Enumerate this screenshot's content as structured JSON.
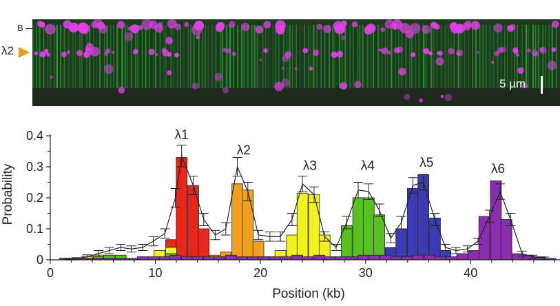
{
  "micrograph": {
    "label_b": "B",
    "label_lane": "λ2",
    "scale_bar": "5 µm",
    "colors": {
      "background": "#1c3a1c",
      "dna": "#39d24a",
      "protein": "#e040e8"
    }
  },
  "chart_data": {
    "type": "bar",
    "title": "",
    "xlabel": "Position (kb)",
    "ylabel": "Probability",
    "xlim": [
      0,
      48.5
    ],
    "ylim": [
      0,
      0.4
    ],
    "x_ticks": [
      0,
      10,
      20,
      30,
      40
    ],
    "y_ticks": [
      0,
      0.1,
      0.2,
      0.3,
      0.4
    ],
    "y_tick_labels": [
      "0",
      "0.1",
      "0.2",
      "0.3",
      "0.4"
    ],
    "bin_width_kb": 1.04,
    "annotations": [
      {
        "text": "λ1",
        "x": 12.5,
        "y": 0.39
      },
      {
        "text": "λ2",
        "x": 18.4,
        "y": 0.34
      },
      {
        "text": "λ3",
        "x": 24.7,
        "y": 0.29
      },
      {
        "text": "λ4",
        "x": 30.2,
        "y": 0.29
      },
      {
        "text": "λ5",
        "x": 35.8,
        "y": 0.3
      },
      {
        "text": "λ6",
        "x": 42.6,
        "y": 0.28
      }
    ],
    "series": [
      {
        "key": "l1",
        "color": "#e8261c",
        "bins": [
          {
            "x": 9.4,
            "y": 0.005
          },
          {
            "x": 10.4,
            "y": 0.01
          },
          {
            "x": 11.5,
            "y": 0.065
          },
          {
            "x": 12.5,
            "y": 0.33
          },
          {
            "x": 13.6,
            "y": 0.24
          },
          {
            "x": 14.6,
            "y": 0.1
          },
          {
            "x": 15.7,
            "y": 0.005
          }
        ]
      },
      {
        "key": "l2",
        "color": "#f0a01c",
        "bins": [
          {
            "x": 15.7,
            "y": 0.015
          },
          {
            "x": 16.7,
            "y": 0.025
          },
          {
            "x": 17.8,
            "y": 0.245
          },
          {
            "x": 18.8,
            "y": 0.225
          },
          {
            "x": 19.8,
            "y": 0.06
          },
          {
            "x": 20.9,
            "y": 0.005
          }
        ]
      },
      {
        "key": "l3",
        "color": "#f2f21c",
        "bins": [
          {
            "x": 3.5,
            "y": 0.01
          },
          {
            "x": 4.6,
            "y": 0.015
          },
          {
            "x": 10.4,
            "y": 0.03
          },
          {
            "x": 11.5,
            "y": 0.04
          },
          {
            "x": 20.9,
            "y": 0.01
          },
          {
            "x": 21.9,
            "y": 0.03
          },
          {
            "x": 23.0,
            "y": 0.08
          },
          {
            "x": 24.0,
            "y": 0.215
          },
          {
            "x": 25.1,
            "y": 0.21
          },
          {
            "x": 26.1,
            "y": 0.08
          },
          {
            "x": 27.2,
            "y": 0.005
          }
        ]
      },
      {
        "key": "l4",
        "color": "#58c020",
        "bins": [
          {
            "x": 4.6,
            "y": 0.01
          },
          {
            "x": 5.6,
            "y": 0.015
          },
          {
            "x": 6.7,
            "y": 0.015
          },
          {
            "x": 11.5,
            "y": 0.02
          },
          {
            "x": 27.2,
            "y": 0.01
          },
          {
            "x": 28.2,
            "y": 0.11
          },
          {
            "x": 29.3,
            "y": 0.2
          },
          {
            "x": 30.3,
            "y": 0.2
          },
          {
            "x": 31.3,
            "y": 0.145
          },
          {
            "x": 32.4,
            "y": 0.005
          }
        ]
      },
      {
        "key": "l5",
        "color": "#3a3ab4",
        "bins": [
          {
            "x": 32.4,
            "y": 0.04
          },
          {
            "x": 33.4,
            "y": 0.1
          },
          {
            "x": 34.5,
            "y": 0.23
          },
          {
            "x": 35.5,
            "y": 0.275
          },
          {
            "x": 36.6,
            "y": 0.135
          },
          {
            "x": 37.6,
            "y": 0.03
          },
          {
            "x": 38.6,
            "y": 0.005
          }
        ]
      },
      {
        "key": "l6",
        "color": "#8a2eb0",
        "bins": [
          {
            "x": 1.4,
            "y": 0.005
          },
          {
            "x": 2.5,
            "y": 0.005
          },
          {
            "x": 3.5,
            "y": 0.005
          },
          {
            "x": 4.6,
            "y": 0.005
          },
          {
            "x": 5.6,
            "y": 0.005
          },
          {
            "x": 6.7,
            "y": 0.005
          },
          {
            "x": 7.7,
            "y": 0.005
          },
          {
            "x": 8.8,
            "y": 0.01
          },
          {
            "x": 9.8,
            "y": 0.01
          },
          {
            "x": 10.9,
            "y": 0.01
          },
          {
            "x": 11.9,
            "y": 0.015
          },
          {
            "x": 13.0,
            "y": 0.01
          },
          {
            "x": 14.0,
            "y": 0.01
          },
          {
            "x": 15.1,
            "y": 0.01
          },
          {
            "x": 16.1,
            "y": 0.01
          },
          {
            "x": 17.2,
            "y": 0.015
          },
          {
            "x": 18.2,
            "y": 0.01
          },
          {
            "x": 19.3,
            "y": 0.01
          },
          {
            "x": 20.3,
            "y": 0.01
          },
          {
            "x": 21.4,
            "y": 0.01
          },
          {
            "x": 22.4,
            "y": 0.01
          },
          {
            "x": 23.5,
            "y": 0.015
          },
          {
            "x": 24.5,
            "y": 0.01
          },
          {
            "x": 25.6,
            "y": 0.015
          },
          {
            "x": 26.6,
            "y": 0.01
          },
          {
            "x": 27.7,
            "y": 0.01
          },
          {
            "x": 28.7,
            "y": 0.01
          },
          {
            "x": 29.8,
            "y": 0.015
          },
          {
            "x": 30.8,
            "y": 0.015
          },
          {
            "x": 31.9,
            "y": 0.015
          },
          {
            "x": 32.9,
            "y": 0.01
          },
          {
            "x": 34.0,
            "y": 0.01
          },
          {
            "x": 35.0,
            "y": 0.015
          },
          {
            "x": 36.1,
            "y": 0.015
          },
          {
            "x": 37.1,
            "y": 0.01
          },
          {
            "x": 38.2,
            "y": 0.01
          },
          {
            "x": 39.2,
            "y": 0.02
          },
          {
            "x": 40.3,
            "y": 0.03
          },
          {
            "x": 41.3,
            "y": 0.14
          },
          {
            "x": 42.4,
            "y": 0.255
          },
          {
            "x": 43.4,
            "y": 0.13
          },
          {
            "x": 44.5,
            "y": 0.02
          },
          {
            "x": 45.5,
            "y": 0.015
          },
          {
            "x": 46.6,
            "y": 0.01
          },
          {
            "x": 47.6,
            "y": 0.005
          }
        ]
      }
    ],
    "overall_line": {
      "color": "#222222",
      "points": [
        {
          "x": 1.4,
          "y": 0.002,
          "err": 0.003
        },
        {
          "x": 2.5,
          "y": 0.003,
          "err": 0.004
        },
        {
          "x": 3.5,
          "y": 0.01,
          "err": 0.006
        },
        {
          "x": 4.6,
          "y": 0.02,
          "err": 0.01
        },
        {
          "x": 5.6,
          "y": 0.03,
          "err": 0.01
        },
        {
          "x": 6.7,
          "y": 0.04,
          "err": 0.01
        },
        {
          "x": 7.7,
          "y": 0.035,
          "err": 0.01
        },
        {
          "x": 8.8,
          "y": 0.04,
          "err": 0.01
        },
        {
          "x": 9.8,
          "y": 0.06,
          "err": 0.015
        },
        {
          "x": 10.9,
          "y": 0.085,
          "err": 0.015
        },
        {
          "x": 11.9,
          "y": 0.2,
          "err": 0.03
        },
        {
          "x": 12.5,
          "y": 0.335,
          "err": 0.035
        },
        {
          "x": 13.6,
          "y": 0.24,
          "err": 0.03
        },
        {
          "x": 14.6,
          "y": 0.13,
          "err": 0.02
        },
        {
          "x": 15.7,
          "y": 0.08,
          "err": 0.015
        },
        {
          "x": 16.7,
          "y": 0.1,
          "err": 0.02
        },
        {
          "x": 17.8,
          "y": 0.3,
          "err": 0.03
        },
        {
          "x": 18.8,
          "y": 0.22,
          "err": 0.03
        },
        {
          "x": 19.8,
          "y": 0.08,
          "err": 0.015
        },
        {
          "x": 20.9,
          "y": 0.075,
          "err": 0.015
        },
        {
          "x": 21.9,
          "y": 0.075,
          "err": 0.015
        },
        {
          "x": 23.0,
          "y": 0.13,
          "err": 0.02
        },
        {
          "x": 24.0,
          "y": 0.245,
          "err": 0.025
        },
        {
          "x": 25.1,
          "y": 0.21,
          "err": 0.025
        },
        {
          "x": 26.1,
          "y": 0.075,
          "err": 0.015
        },
        {
          "x": 27.2,
          "y": 0.04,
          "err": 0.01
        },
        {
          "x": 28.2,
          "y": 0.12,
          "err": 0.02
        },
        {
          "x": 29.3,
          "y": 0.225,
          "err": 0.025
        },
        {
          "x": 30.3,
          "y": 0.22,
          "err": 0.025
        },
        {
          "x": 31.3,
          "y": 0.16,
          "err": 0.02
        },
        {
          "x": 32.4,
          "y": 0.07,
          "err": 0.015
        },
        {
          "x": 33.4,
          "y": 0.12,
          "err": 0.02
        },
        {
          "x": 34.5,
          "y": 0.24,
          "err": 0.025
        },
        {
          "x": 35.5,
          "y": 0.25,
          "err": 0.025
        },
        {
          "x": 36.6,
          "y": 0.13,
          "err": 0.02
        },
        {
          "x": 37.6,
          "y": 0.04,
          "err": 0.01
        },
        {
          "x": 38.6,
          "y": 0.03,
          "err": 0.01
        },
        {
          "x": 39.7,
          "y": 0.035,
          "err": 0.01
        },
        {
          "x": 40.7,
          "y": 0.06,
          "err": 0.01
        },
        {
          "x": 41.8,
          "y": 0.14,
          "err": 0.02
        },
        {
          "x": 42.8,
          "y": 0.22,
          "err": 0.025
        },
        {
          "x": 43.8,
          "y": 0.13,
          "err": 0.02
        },
        {
          "x": 44.9,
          "y": 0.02,
          "err": 0.008
        },
        {
          "x": 45.9,
          "y": 0.01,
          "err": 0.005
        },
        {
          "x": 47.0,
          "y": 0.005,
          "err": 0.004
        }
      ]
    }
  }
}
